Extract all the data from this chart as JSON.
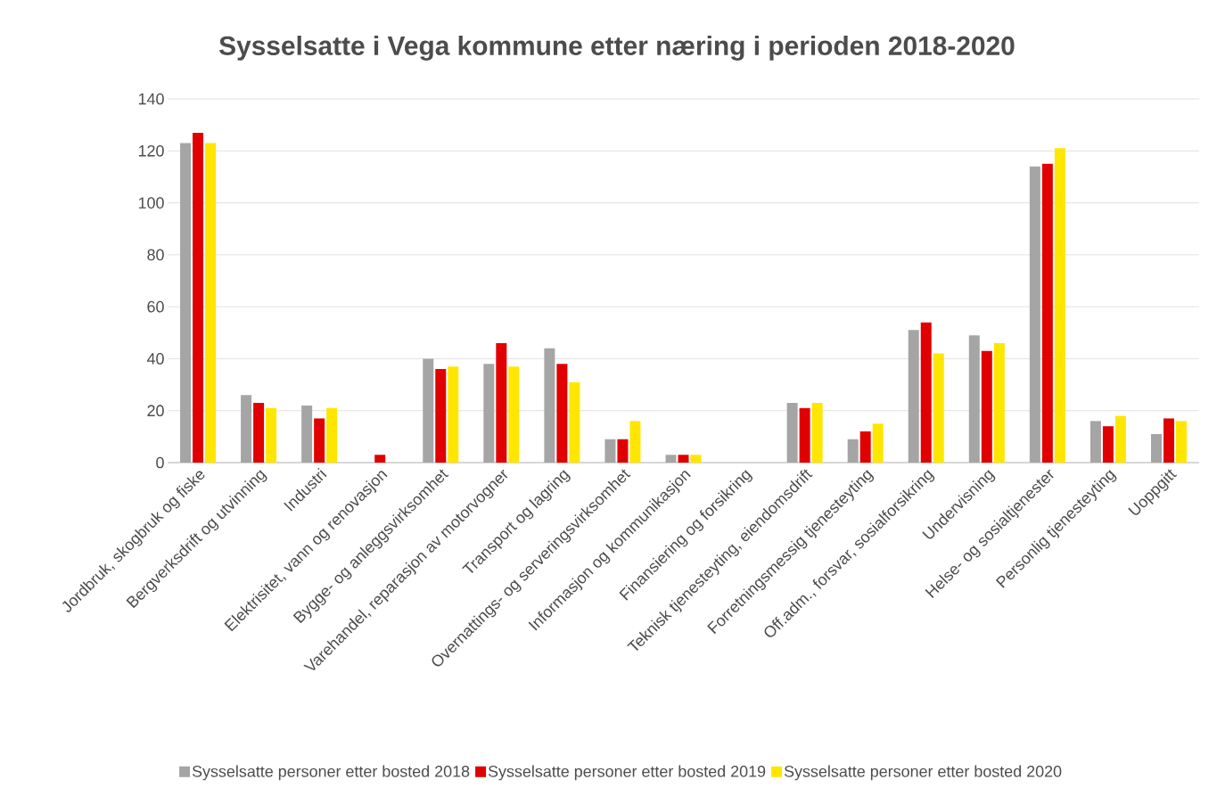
{
  "chart_data": {
    "type": "bar",
    "title": "Sysselsatte i Vega kommune etter næring i perioden 2018-2020",
    "categories": [
      "Jordbruk, skogbruk og fiske",
      "Bergverksdrift og utvinning",
      "Industri",
      "Elektrisitet, vann og renovasjon",
      "Bygge- og anleggsvirksomhet",
      "Varehandel, reparasjon av motorvogner",
      "Transport og lagring",
      "Overnattings- og serveringsvirksomhet",
      "Informasjon og kommunikasjon",
      "Finansiering og forsikring",
      "Teknisk tjenesteyting, eiendomsdrift",
      "Forretningsmessig tjenesteyting",
      "Off.adm., forsvar, sosialforsikring",
      "Undervisning",
      "Helse- og sosialtjenester",
      "Personlig tjenesteyting",
      "Uoppgitt"
    ],
    "series": [
      {
        "name": "Sysselsatte personer etter bosted 2018",
        "color": "#a5a5a5",
        "values": [
          123,
          26,
          22,
          0,
          40,
          38,
          44,
          9,
          3,
          0,
          23,
          9,
          51,
          49,
          114,
          16,
          11
        ]
      },
      {
        "name": "Sysselsatte personer etter bosted 2019",
        "color": "#e00000",
        "values": [
          127,
          23,
          17,
          3,
          36,
          46,
          38,
          9,
          3,
          0,
          21,
          12,
          54,
          43,
          115,
          14,
          17
        ]
      },
      {
        "name": "Sysselsatte personer etter bosted 2020",
        "color": "#ffe600",
        "values": [
          123,
          21,
          21,
          0,
          37,
          37,
          31,
          16,
          3,
          0,
          23,
          15,
          42,
          46,
          121,
          18,
          16
        ]
      }
    ],
    "ylim": [
      0,
      140
    ],
    "yticks": [
      0,
      20,
      40,
      60,
      80,
      100,
      120,
      140
    ],
    "grid": "y",
    "legend": "bottom"
  }
}
